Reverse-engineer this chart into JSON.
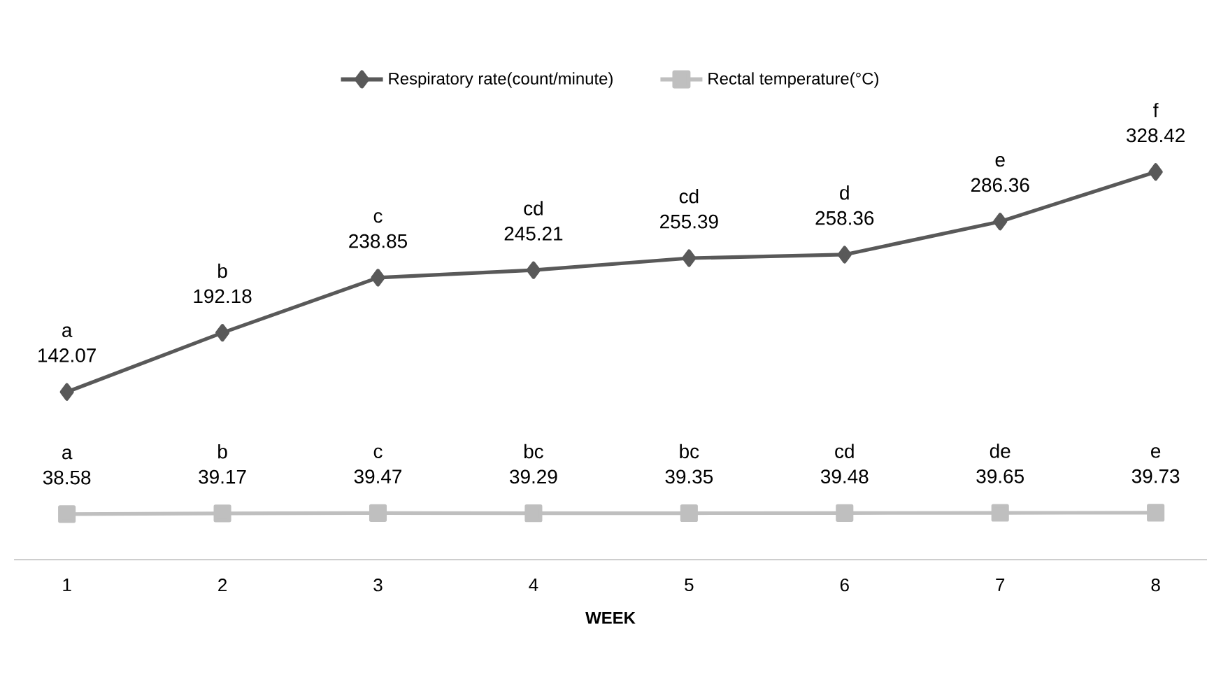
{
  "chart_data": {
    "type": "line",
    "xlabel": "WEEK",
    "categories": [
      "1",
      "2",
      "3",
      "4",
      "5",
      "6",
      "7",
      "8"
    ],
    "series": [
      {
        "name": "Respiratory rate(count/minute)",
        "color": "#595959",
        "marker": "diamond",
        "values": [
          142.07,
          192.18,
          238.85,
          245.21,
          255.39,
          258.36,
          286.36,
          328.42
        ]
      },
      {
        "name": "Rectal temperature(°C)",
        "color": "#bfbfbf",
        "marker": "square",
        "values": [
          38.58,
          39.17,
          39.47,
          39.29,
          39.35,
          39.48,
          39.65,
          39.73
        ]
      }
    ],
    "annotations": [
      {
        "text": "a",
        "x": "1",
        "y": 142.07
      },
      {
        "text": "b",
        "x": "2",
        "y": 192.18
      },
      {
        "text": "c",
        "x": "3",
        "y": 238.85
      },
      {
        "text": "cd",
        "x": "4",
        "y": 245.21
      },
      {
        "text": "cd",
        "x": "5",
        "y": 255.39
      },
      {
        "text": "d",
        "x": "6",
        "y": 258.36
      },
      {
        "text": "e",
        "x": "7",
        "y": 286.36
      },
      {
        "text": "f",
        "x": "8",
        "y": 328.42
      },
      {
        "text": "a",
        "x": "1",
        "y": 38.58
      },
      {
        "text": "b",
        "x": "2",
        "y": 39.17
      },
      {
        "text": "c",
        "x": "3",
        "y": 39.47
      },
      {
        "text": "bc",
        "x": "4",
        "y": 39.29
      },
      {
        "text": "bc",
        "x": "5",
        "y": 39.35
      },
      {
        "text": "cd",
        "x": "6",
        "y": 39.48
      },
      {
        "text": "de",
        "x": "7",
        "y": 39.65
      },
      {
        "text": "e",
        "x": "8",
        "y": 39.73
      }
    ],
    "data_labels": true,
    "legend": "top",
    "tick_labels": "x",
    "grid": false
  }
}
